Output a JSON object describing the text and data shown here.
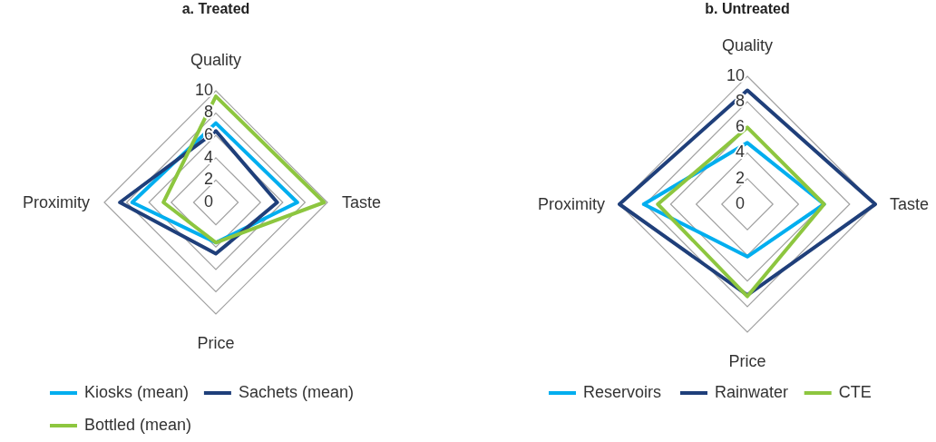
{
  "chart_data": [
    {
      "type": "radar",
      "title": "a. Treated",
      "categories": [
        "Quality",
        "Taste",
        "Price",
        "Proximity"
      ],
      "ylim": [
        0,
        10
      ],
      "yticks": [
        0,
        2,
        4,
        6,
        8,
        10
      ],
      "legend": "bottom",
      "series": [
        {
          "name": "Kiosks (mean)",
          "color": "#00aeef",
          "values": [
            7.1,
            7.3,
            3.6,
            7.5
          ]
        },
        {
          "name": "Sachets (mean)",
          "color": "#1f3f7a",
          "values": [
            6.4,
            5.5,
            4.6,
            8.6
          ]
        },
        {
          "name": "Bottled (mean)",
          "color": "#8dc63f",
          "values": [
            9.5,
            9.7,
            3.6,
            4.7
          ]
        }
      ]
    },
    {
      "type": "radar",
      "title": "b. Untreated",
      "categories": [
        "Quality",
        "Taste",
        "Price",
        "Proximity"
      ],
      "ylim": [
        0,
        10
      ],
      "yticks": [
        0,
        2,
        4,
        6,
        8,
        10
      ],
      "legend": "bottom",
      "series": [
        {
          "name": "Reservoirs",
          "color": "#00aeef",
          "values": [
            4.8,
            6,
            4.1,
            8.1
          ]
        },
        {
          "name": "Rainwater",
          "color": "#1f3f7a",
          "values": [
            8.9,
            10,
            7.1,
            10
          ]
        },
        {
          "name": "CTE",
          "color": "#8dc63f",
          "values": [
            6,
            6,
            7.2,
            7
          ]
        }
      ]
    }
  ]
}
